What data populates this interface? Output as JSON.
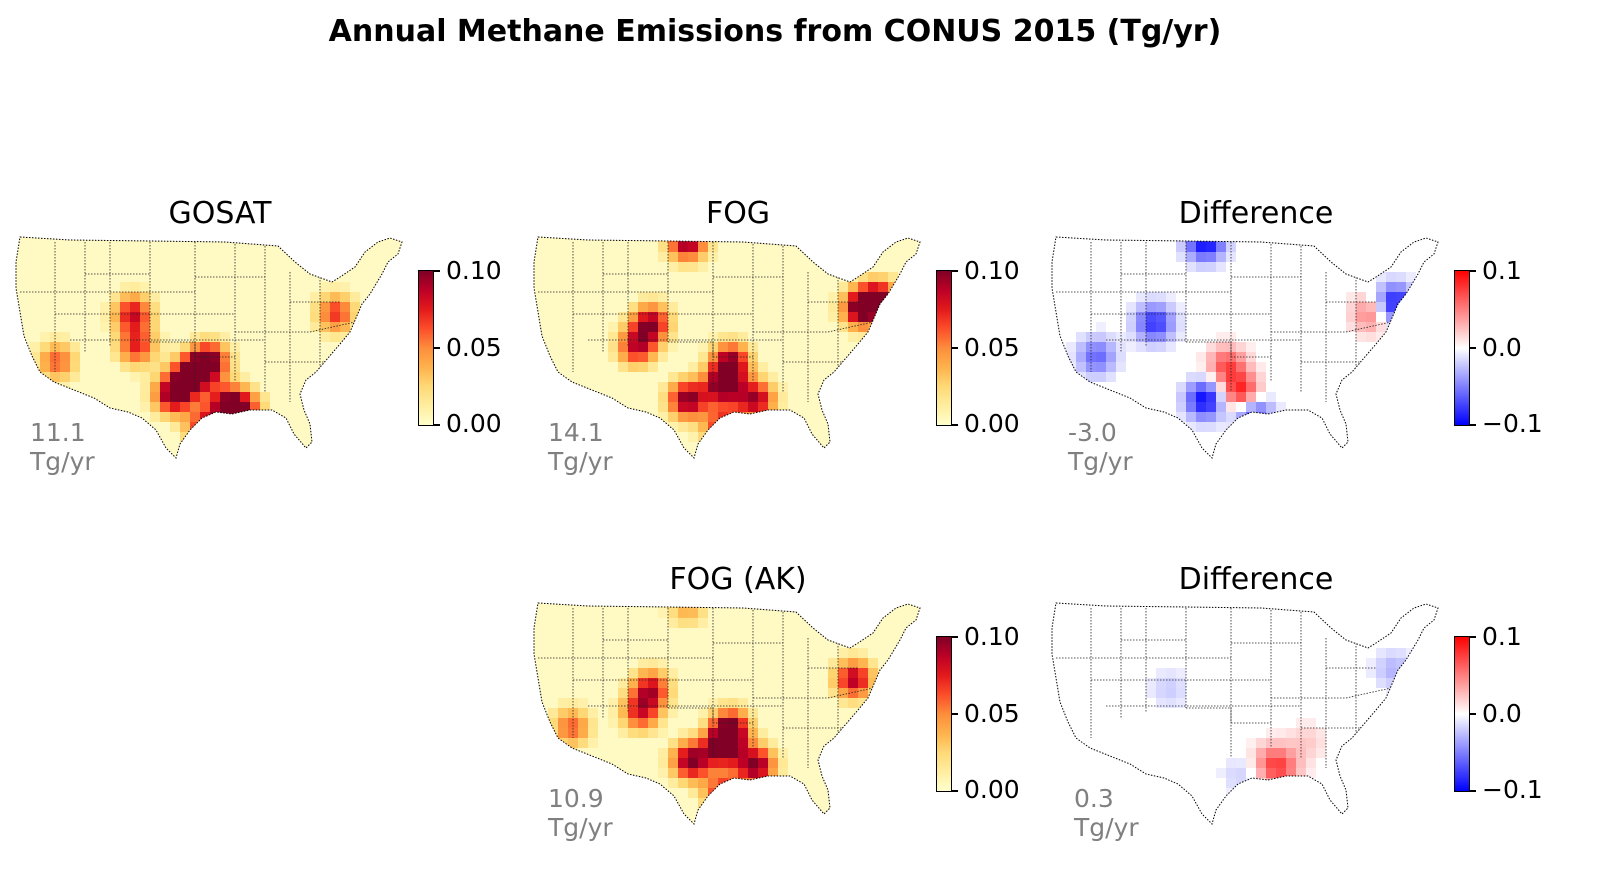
{
  "title": "Annual Methane Emissions from CONUS 2015 (Tg/yr)",
  "colormaps": {
    "sequential": [
      "#ffffcc",
      "#ffeda0",
      "#fed976",
      "#feb24c",
      "#fd8d3c",
      "#fc4e2a",
      "#e31a1c",
      "#bd0026",
      "#800026"
    ],
    "diverging": [
      "#0000ff",
      "#ffffff",
      "#ff0000"
    ]
  },
  "chart_data": [
    {
      "type": "heatmap",
      "title": "GOSAT",
      "total_label": "11.1 Tg/yr",
      "colorbar": {
        "ticks": [
          "0.10",
          "0.05",
          "0.00"
        ],
        "range": [
          0,
          0.1
        ],
        "cmap": "YlOrRd"
      },
      "hotspots": [
        {
          "lon": -102.5,
          "lat": 32.0,
          "value": 0.1
        },
        {
          "lon": -100.0,
          "lat": 34.0,
          "value": 0.1
        },
        {
          "lon": -97.5,
          "lat": 35.5,
          "value": 0.1
        },
        {
          "lon": -95.0,
          "lat": 31.0,
          "value": 0.09
        },
        {
          "lon": -98.0,
          "lat": 28.5,
          "value": 0.08
        },
        {
          "lon": -108.0,
          "lat": 40.5,
          "value": 0.08
        },
        {
          "lon": -107.5,
          "lat": 37.0,
          "value": 0.07
        },
        {
          "lon": -80.0,
          "lat": 40.5,
          "value": 0.07
        },
        {
          "lon": -92.5,
          "lat": 30.5,
          "value": 0.06
        },
        {
          "lon": -118.5,
          "lat": 35.5,
          "value": 0.06
        }
      ]
    },
    {
      "type": "heatmap",
      "title": "FOG",
      "total_label": "14.1 Tg/yr",
      "colorbar": {
        "ticks": [
          "0.10",
          "0.05",
          "0.00"
        ],
        "range": [
          0,
          0.1
        ],
        "cmap": "YlOrRd"
      },
      "hotspots": [
        {
          "lon": -103.0,
          "lat": 48.0,
          "value": 0.1
        },
        {
          "lon": -103.0,
          "lat": 31.5,
          "value": 0.1
        },
        {
          "lon": -98.0,
          "lat": 33.0,
          "value": 0.1
        },
        {
          "lon": -97.0,
          "lat": 35.5,
          "value": 0.09
        },
        {
          "lon": -93.5,
          "lat": 31.5,
          "value": 0.09
        },
        {
          "lon": -108.0,
          "lat": 39.5,
          "value": 0.09
        },
        {
          "lon": -110.0,
          "lat": 37.0,
          "value": 0.08
        },
        {
          "lon": -79.0,
          "lat": 41.0,
          "value": 0.1
        },
        {
          "lon": -76.5,
          "lat": 42.0,
          "value": 0.09
        },
        {
          "lon": -98.0,
          "lat": 28.5,
          "value": 0.08
        }
      ]
    },
    {
      "type": "heatmap",
      "title": "Difference",
      "total_label": "-3.0 Tg/yr",
      "colorbar": {
        "ticks": [
          "0.1",
          "0.0",
          "−0.1"
        ],
        "range": [
          -0.1,
          0.1
        ],
        "cmap": "bwr"
      },
      "hotspots": [
        {
          "lon": -103.0,
          "lat": 48.0,
          "value": -0.1
        },
        {
          "lon": -103.0,
          "lat": 31.5,
          "value": -0.1
        },
        {
          "lon": -98.0,
          "lat": 32.0,
          "value": 0.1
        },
        {
          "lon": -96.5,
          "lat": 30.0,
          "value": -0.1
        },
        {
          "lon": -100.0,
          "lat": 35.0,
          "value": 0.07
        },
        {
          "lon": -77.0,
          "lat": 41.5,
          "value": -0.1
        },
        {
          "lon": -80.0,
          "lat": 40.5,
          "value": 0.06
        },
        {
          "lon": -110.0,
          "lat": 39.5,
          "value": -0.08
        },
        {
          "lon": -118.0,
          "lat": 36.0,
          "value": -0.06
        },
        {
          "lon": -96.0,
          "lat": 27.5,
          "value": 0.05
        }
      ]
    },
    {
      "type": "heatmap",
      "title": "FOG (AK)",
      "total_label": "10.9 Tg/yr",
      "colorbar": {
        "ticks": [
          "0.10",
          "0.05",
          "0.00"
        ],
        "range": [
          0,
          0.1
        ],
        "cmap": "YlOrRd"
      },
      "hotspots": [
        {
          "lon": -102.5,
          "lat": 32.0,
          "value": 0.1
        },
        {
          "lon": -98.0,
          "lat": 33.5,
          "value": 0.1
        },
        {
          "lon": -97.0,
          "lat": 35.5,
          "value": 0.09
        },
        {
          "lon": -93.5,
          "lat": 31.5,
          "value": 0.1
        },
        {
          "lon": -108.0,
          "lat": 39.5,
          "value": 0.08
        },
        {
          "lon": -109.5,
          "lat": 37.0,
          "value": 0.07
        },
        {
          "lon": -80.0,
          "lat": 40.5,
          "value": 0.09
        },
        {
          "lon": -98.0,
          "lat": 28.5,
          "value": 0.08
        },
        {
          "lon": -119.0,
          "lat": 35.5,
          "value": 0.06
        },
        {
          "lon": -103.0,
          "lat": 48.0,
          "value": 0.04
        }
      ]
    },
    {
      "type": "heatmap",
      "title": "Difference",
      "total_label": "0.3 Tg/yr",
      "colorbar": {
        "ticks": [
          "0.1",
          "0.0",
          "−0.1"
        ],
        "range": [
          -0.1,
          0.1
        ],
        "cmap": "bwr"
      },
      "hotspots": [
        {
          "lon": -92.5,
          "lat": 31.0,
          "value": 0.05
        },
        {
          "lon": -94.0,
          "lat": 32.0,
          "value": 0.04
        },
        {
          "lon": -98.0,
          "lat": 30.5,
          "value": -0.02
        },
        {
          "lon": -77.0,
          "lat": 41.5,
          "value": -0.03
        },
        {
          "lon": -108.0,
          "lat": 39.5,
          "value": -0.02
        },
        {
          "lon": -89.0,
          "lat": 34.0,
          "value": 0.02
        }
      ]
    }
  ]
}
